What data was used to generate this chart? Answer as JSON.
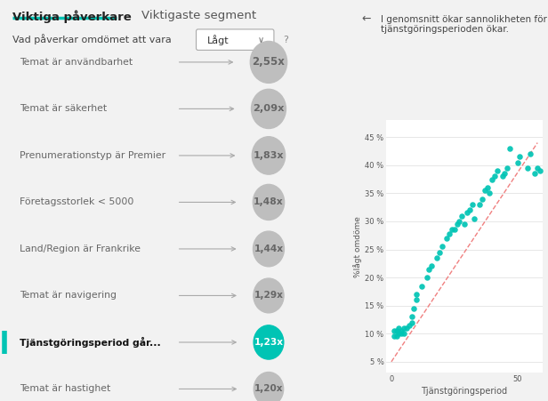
{
  "title": "I genomsnitt ökar sannolikheten för lågt omdöme när\ntjänstgöringsperioden ökar.",
  "xlabel": "Tjänstgöringsperiod",
  "ylabel": "%lågt omdöme",
  "dot_color": "#00C4B4",
  "trend_color": "#F08080",
  "bg_color": "#F2F2F2",
  "right_bg": "#FFFFFF",
  "ytick_labels": [
    "5 %",
    "10 %",
    "15 %",
    "20 %",
    "25 %",
    "30 %",
    "35 %",
    "40 %",
    "45 %"
  ],
  "ytick_values": [
    0.05,
    0.1,
    0.15,
    0.2,
    0.25,
    0.3,
    0.35,
    0.4,
    0.45
  ],
  "xlim": [
    -2,
    60
  ],
  "ylim": [
    0.03,
    0.48
  ],
  "scatter_x": [
    1,
    1,
    2,
    2,
    3,
    3,
    4,
    4,
    5,
    5,
    6,
    7,
    8,
    8,
    9,
    10,
    10,
    12,
    14,
    15,
    16,
    18,
    19,
    20,
    22,
    23,
    24,
    25,
    26,
    27,
    28,
    29,
    30,
    31,
    32,
    33,
    35,
    36,
    37,
    38,
    39,
    40,
    41,
    42,
    44,
    45,
    46,
    47,
    50,
    51,
    54,
    55,
    57,
    58,
    59
  ],
  "scatter_y": [
    0.095,
    0.105,
    0.095,
    0.105,
    0.1,
    0.11,
    0.1,
    0.105,
    0.1,
    0.11,
    0.11,
    0.115,
    0.12,
    0.13,
    0.145,
    0.16,
    0.17,
    0.185,
    0.2,
    0.215,
    0.22,
    0.235,
    0.245,
    0.255,
    0.27,
    0.278,
    0.285,
    0.285,
    0.295,
    0.3,
    0.31,
    0.295,
    0.315,
    0.32,
    0.33,
    0.305,
    0.33,
    0.34,
    0.355,
    0.36,
    0.35,
    0.375,
    0.38,
    0.39,
    0.38,
    0.385,
    0.395,
    0.43,
    0.405,
    0.415,
    0.395,
    0.42,
    0.385,
    0.395,
    0.39
  ],
  "trend_x": [
    0,
    58
  ],
  "trend_y": [
    0.05,
    0.44
  ],
  "left_panel_items": [
    {
      "label": "Temat är användbarhet",
      "value": "2,55x",
      "rel_size": 1.0,
      "color": "#BEBEBE",
      "bold": false,
      "selected": false
    },
    {
      "label": "Temat är säkerhet",
      "value": "2,09x",
      "rel_size": 0.85,
      "color": "#BEBEBE",
      "bold": false,
      "selected": false
    },
    {
      "label": "Prenumerationstyp är Premier",
      "value": "1,83x",
      "rel_size": 0.75,
      "color": "#BEBEBE",
      "bold": false,
      "selected": false
    },
    {
      "label": "Företagsstorlek < 5000",
      "value": "1,48x",
      "rel_size": 0.62,
      "color": "#BEBEBE",
      "bold": false,
      "selected": false
    },
    {
      "label": "Land/Region är Frankrike",
      "value": "1,44x",
      "rel_size": 0.6,
      "color": "#BEBEBE",
      "bold": false,
      "selected": false
    },
    {
      "label": "Temat är navigering",
      "value": "1,29x",
      "rel_size": 0.55,
      "color": "#BEBEBE",
      "bold": false,
      "selected": false
    },
    {
      "label": "Tjänstgöringsperiod går...",
      "value": "1,23x",
      "rel_size": 0.52,
      "color": "#00C4B4",
      "bold": true,
      "selected": true
    },
    {
      "label": "Temat är hastighet",
      "value": "1,20x",
      "rel_size": 0.5,
      "color": "#BEBEBE",
      "bold": false,
      "selected": false
    }
  ],
  "header_tab1": "Viktiga påverkare",
  "header_tab2": "Viktigaste segment",
  "dropdown_label": "Vad påverkar omdömet att vara",
  "dropdown_value": "Lågt"
}
